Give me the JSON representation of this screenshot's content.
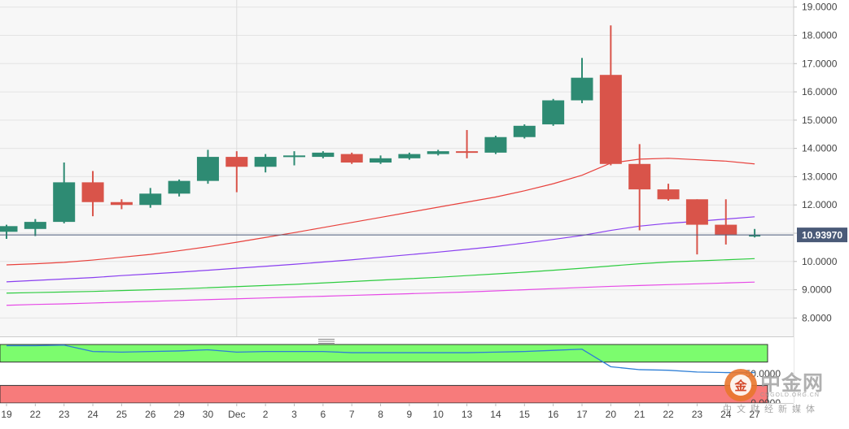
{
  "chart_data": [
    {
      "type": "candlestick",
      "title": "",
      "x_tick_labels": [
        "19",
        "22",
        "23",
        "24",
        "25",
        "26",
        "29",
        "30",
        "Dec",
        "2",
        "3",
        "6",
        "7",
        "8",
        "9",
        "10",
        "13",
        "14",
        "15",
        "16",
        "17",
        "20",
        "21",
        "22",
        "23",
        "24",
        "27"
      ],
      "y_tick_labels": [
        "19.0000",
        "18.0000",
        "17.0000",
        "16.0000",
        "15.0000",
        "14.0000",
        "13.0000",
        "12.0000",
        "11.0000",
        "10.0000",
        "9.0000",
        "8.0000"
      ],
      "ylim": [
        7.35,
        19.25
      ],
      "current_price_label": "10.93970",
      "current_price": 10.9397,
      "candles": [
        {
          "open": 11.05,
          "high": 11.3,
          "low": 10.8,
          "close": 11.25
        },
        {
          "open": 11.15,
          "high": 11.5,
          "low": 10.9,
          "close": 11.4
        },
        {
          "open": 11.4,
          "high": 13.5,
          "low": 11.35,
          "close": 12.8
        },
        {
          "open": 12.8,
          "high": 13.2,
          "low": 11.6,
          "close": 12.1
        },
        {
          "open": 12.1,
          "high": 12.2,
          "low": 11.85,
          "close": 12.0
        },
        {
          "open": 12.0,
          "high": 12.6,
          "low": 11.9,
          "close": 12.4
        },
        {
          "open": 12.4,
          "high": 12.9,
          "low": 12.3,
          "close": 12.85
        },
        {
          "open": 12.85,
          "high": 13.95,
          "low": 12.75,
          "close": 13.7
        },
        {
          "open": 13.7,
          "high": 13.9,
          "low": 12.45,
          "close": 13.35
        },
        {
          "open": 13.35,
          "high": 13.8,
          "low": 13.15,
          "close": 13.7
        },
        {
          "open": 13.7,
          "high": 13.9,
          "low": 13.4,
          "close": 13.75
        },
        {
          "open": 13.7,
          "high": 13.9,
          "low": 13.65,
          "close": 13.85
        },
        {
          "open": 13.8,
          "high": 13.85,
          "low": 13.45,
          "close": 13.5
        },
        {
          "open": 13.5,
          "high": 13.75,
          "low": 13.45,
          "close": 13.65
        },
        {
          "open": 13.65,
          "high": 13.85,
          "low": 13.6,
          "close": 13.8
        },
        {
          "open": 13.8,
          "high": 13.95,
          "low": 13.75,
          "close": 13.9
        },
        {
          "open": 13.9,
          "high": 14.65,
          "low": 13.65,
          "close": 13.85
        },
        {
          "open": 13.85,
          "high": 14.45,
          "low": 13.8,
          "close": 14.4
        },
        {
          "open": 14.4,
          "high": 14.85,
          "low": 14.35,
          "close": 14.8
        },
        {
          "open": 14.85,
          "high": 15.75,
          "low": 14.8,
          "close": 15.7
        },
        {
          "open": 15.7,
          "high": 17.2,
          "low": 15.6,
          "close": 16.5
        },
        {
          "open": 16.6,
          "high": 18.35,
          "low": 13.4,
          "close": 13.45
        },
        {
          "open": 13.45,
          "high": 14.15,
          "low": 11.1,
          "close": 12.55
        },
        {
          "open": 12.55,
          "high": 12.75,
          "low": 12.15,
          "close": 12.2
        },
        {
          "open": 12.2,
          "high": 12.2,
          "low": 10.25,
          "close": 11.3
        },
        {
          "open": 11.3,
          "high": 12.2,
          "low": 10.6,
          "close": 10.95
        },
        {
          "open": 10.9,
          "high": 11.15,
          "low": 10.85,
          "close": 10.94
        }
      ],
      "moving_averages": [
        {
          "color": "#e8413c",
          "values": [
            9.88,
            9.92,
            9.97,
            10.05,
            10.15,
            10.25,
            10.38,
            10.52,
            10.68,
            10.85,
            11.02,
            11.2,
            11.38,
            11.56,
            11.74,
            11.92,
            12.1,
            12.28,
            12.5,
            12.75,
            13.05,
            13.48,
            13.62,
            13.65,
            13.6,
            13.55,
            13.45
          ]
        },
        {
          "color": "#8a3ff0",
          "values": [
            9.28,
            9.33,
            9.38,
            9.43,
            9.5,
            9.56,
            9.62,
            9.69,
            9.76,
            9.83,
            9.9,
            9.98,
            10.06,
            10.15,
            10.24,
            10.33,
            10.43,
            10.53,
            10.65,
            10.78,
            10.92,
            11.1,
            11.25,
            11.35,
            11.42,
            11.5,
            11.58
          ]
        },
        {
          "color": "#2ecc40",
          "values": [
            8.88,
            8.9,
            8.92,
            8.94,
            8.97,
            9.0,
            9.03,
            9.07,
            9.11,
            9.15,
            9.19,
            9.24,
            9.29,
            9.34,
            9.39,
            9.44,
            9.5,
            9.56,
            9.62,
            9.69,
            9.76,
            9.84,
            9.92,
            9.98,
            10.02,
            10.06,
            10.1
          ]
        },
        {
          "color": "#e64ae6",
          "values": [
            8.45,
            8.48,
            8.5,
            8.53,
            8.56,
            8.59,
            8.62,
            8.65,
            8.68,
            8.71,
            8.74,
            8.77,
            8.8,
            8.83,
            8.86,
            8.89,
            8.92,
            8.96,
            9.0,
            9.04,
            9.08,
            9.12,
            9.15,
            9.18,
            9.21,
            9.24,
            9.27
          ]
        }
      ],
      "grid": true
    },
    {
      "type": "line",
      "title": "",
      "y_tick_labels": [
        "50.0000",
        "0.0000"
      ],
      "ylim": [
        0,
        100
      ],
      "zones": [
        {
          "color": "#7cfc6e",
          "from": 70,
          "to": 100
        },
        {
          "color": "#f77b7b",
          "from": 0,
          "to": 30
        }
      ],
      "series": [
        {
          "color": "#2f7fd6",
          "values": [
            98,
            98,
            99,
            88,
            87,
            88,
            89,
            91,
            87,
            88,
            88,
            88,
            86,
            86,
            86,
            86,
            86,
            87,
            88,
            90,
            92,
            62,
            57,
            56,
            53,
            52,
            52
          ]
        }
      ]
    }
  ],
  "watermark": {
    "title": "中金网",
    "subtitle": "CNGOLD.ORG.CN",
    "tagline": "中文财经新媒体",
    "logo_glyph": "金"
  }
}
